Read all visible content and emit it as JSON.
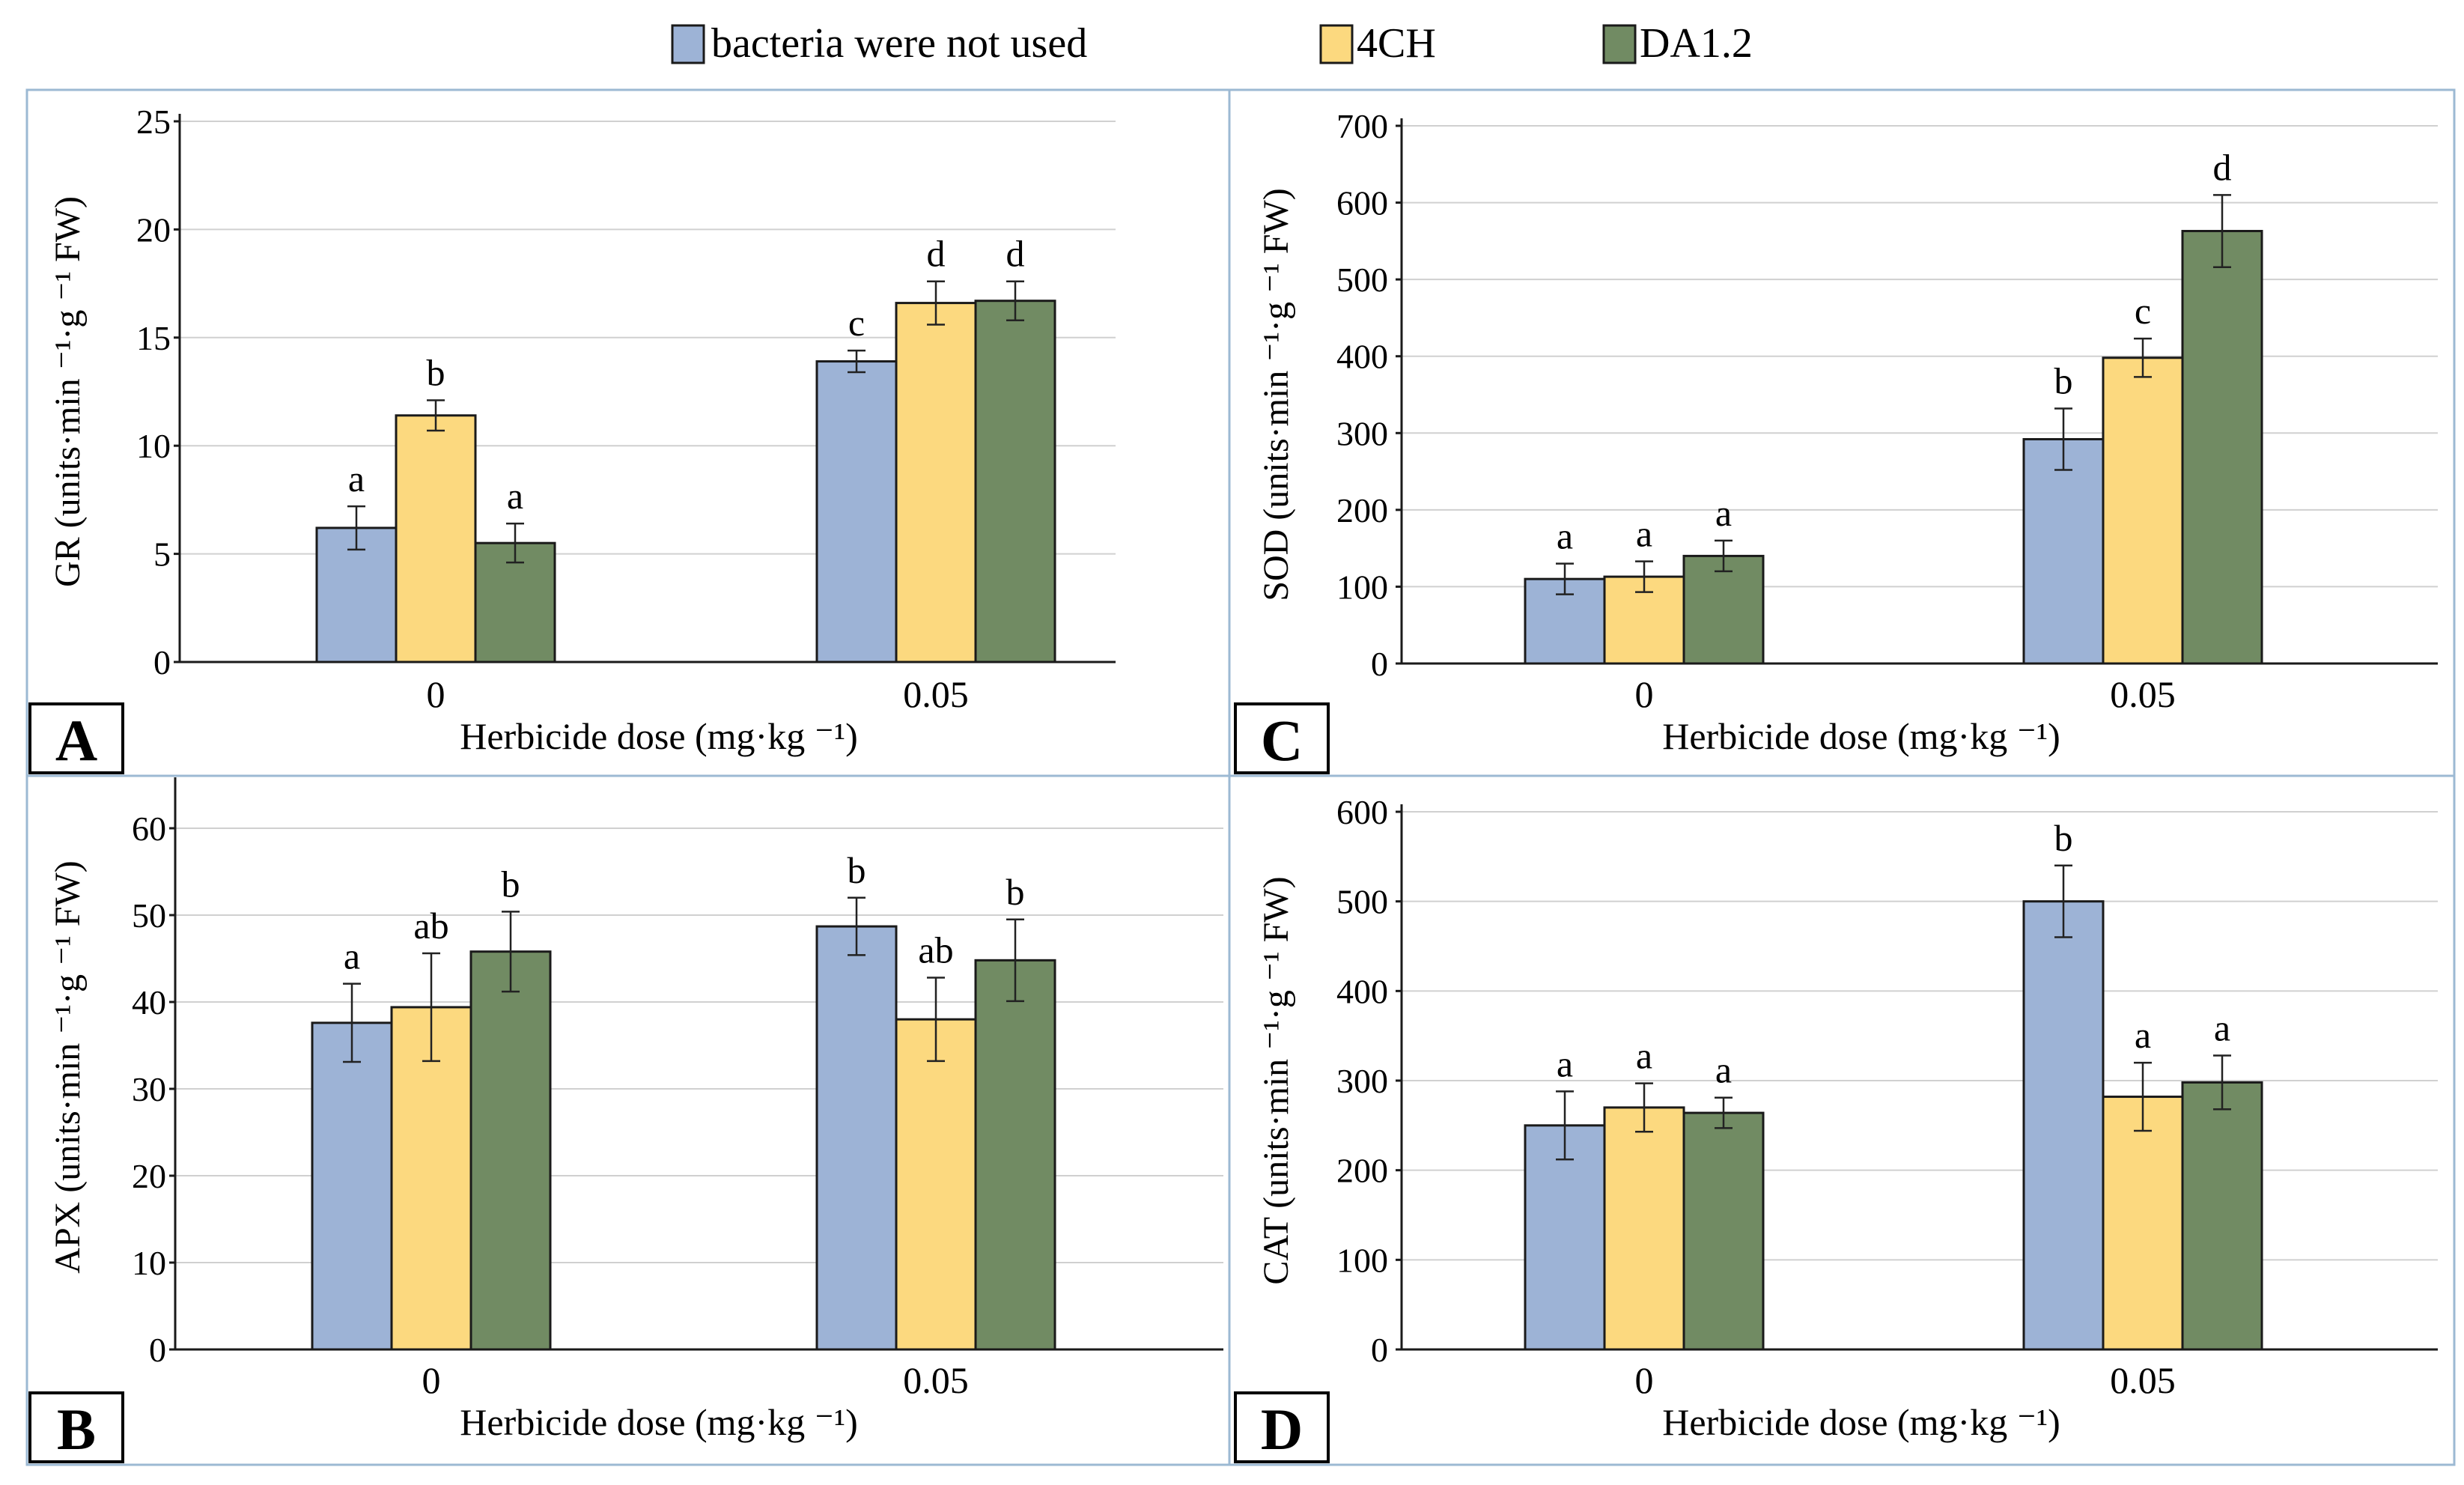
{
  "legend": {
    "items": [
      {
        "label": "bacteria were not used",
        "color": "#9db3d6"
      },
      {
        "label": "4CH",
        "color": "#fcd97f"
      },
      {
        "label": "DA1.2",
        "color": "#718b63"
      }
    ]
  },
  "colors": {
    "bar_stroke": "#1a1a1a",
    "axis": "#1a1a1a",
    "panel_border": "#9cb9d3"
  },
  "chart_data": [
    {
      "type": "bar",
      "panel_label": "A",
      "title": "",
      "categories": [
        "0",
        "0.05"
      ],
      "xlabel": "Herbicide dose (mg·kg ⁻¹)",
      "ylabel": "GR (units·min ⁻¹·g ⁻¹ FW)",
      "ylim": [
        0,
        25
      ],
      "yticks": [
        0,
        5,
        10,
        15,
        20,
        25
      ],
      "series": [
        {
          "name": "bacteria were not used",
          "values": [
            6.2,
            13.9
          ],
          "errors": [
            1.0,
            0.5
          ],
          "letters": [
            "a",
            "c"
          ]
        },
        {
          "name": "4CH",
          "values": [
            11.4,
            16.6
          ],
          "errors": [
            0.7,
            1.0
          ],
          "letters": [
            "b",
            "d"
          ]
        },
        {
          "name": "DA1.2",
          "values": [
            5.5,
            16.7
          ],
          "errors": [
            0.9,
            0.9
          ],
          "letters": [
            "a",
            "d"
          ]
        }
      ]
    },
    {
      "type": "bar",
      "panel_label": "B",
      "title": "",
      "categories": [
        "0",
        "0.05"
      ],
      "xlabel": "Herbicide dose (mg·kg ⁻¹)",
      "ylabel": "APX (units·min ⁻¹·g ⁻¹ FW)",
      "ylim": [
        0,
        65
      ],
      "yticks": [
        0,
        10,
        20,
        30,
        40,
        50,
        60
      ],
      "series": [
        {
          "name": "bacteria were not used",
          "values": [
            37.6,
            48.7
          ],
          "errors": [
            4.5,
            3.3
          ],
          "letters": [
            "a",
            "b"
          ]
        },
        {
          "name": "4CH",
          "values": [
            39.4,
            38.0
          ],
          "errors": [
            6.2,
            4.8
          ],
          "letters": [
            "ab",
            "ab"
          ]
        },
        {
          "name": "DA1.2",
          "values": [
            45.8,
            44.8
          ],
          "errors": [
            4.6,
            4.7
          ],
          "letters": [
            "b",
            "b"
          ]
        }
      ]
    },
    {
      "type": "bar",
      "panel_label": "C",
      "title": "",
      "categories": [
        "0",
        "0.05"
      ],
      "xlabel": "Herbicide dose (mg·kg ⁻¹)",
      "ylabel": "SOD (units·min ⁻¹·g ⁻¹ FW)",
      "ylim": [
        0,
        700
      ],
      "yticks": [
        0,
        100,
        200,
        300,
        400,
        500,
        600,
        700
      ],
      "series": [
        {
          "name": "bacteria were not used",
          "values": [
            110,
            292
          ],
          "errors": [
            20,
            40
          ],
          "letters": [
            "a",
            "b"
          ]
        },
        {
          "name": "4CH",
          "values": [
            113,
            398
          ],
          "errors": [
            20,
            25
          ],
          "letters": [
            "a",
            "c"
          ]
        },
        {
          "name": "DA1.2",
          "values": [
            140,
            563
          ],
          "errors": [
            20,
            47
          ],
          "letters": [
            "a",
            "d"
          ]
        }
      ]
    },
    {
      "type": "bar",
      "panel_label": "D",
      "title": "",
      "categories": [
        "0",
        "0.05"
      ],
      "xlabel": "Herbicide dose (mg·kg ⁻¹)",
      "ylabel": "CAT (units·min ⁻¹·g ⁻¹ FW)",
      "ylim": [
        0,
        600
      ],
      "yticks": [
        0,
        100,
        200,
        300,
        400,
        500,
        600
      ],
      "series": [
        {
          "name": "bacteria were not used",
          "values": [
            250,
            500
          ],
          "errors": [
            38,
            40
          ],
          "letters": [
            "a",
            "b"
          ]
        },
        {
          "name": "4CH",
          "values": [
            270,
            282
          ],
          "errors": [
            27,
            38
          ],
          "letters": [
            "a",
            "a"
          ]
        },
        {
          "name": "DA1.2",
          "values": [
            264,
            298
          ],
          "errors": [
            17,
            30
          ],
          "letters": [
            "a",
            "a"
          ]
        }
      ]
    }
  ]
}
